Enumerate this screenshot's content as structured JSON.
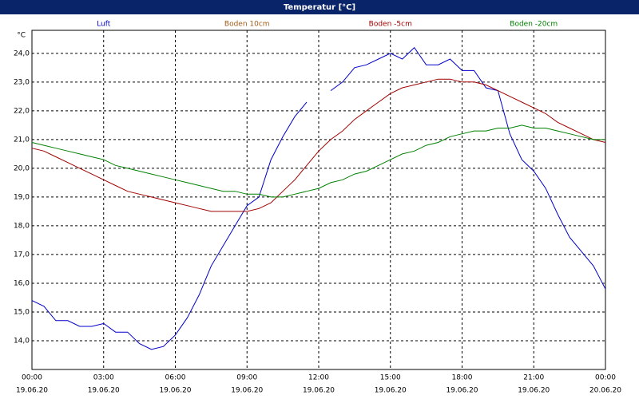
{
  "chart_data": {
    "type": "line",
    "title": "Temperatur [°C]",
    "y_unit": "°C",
    "x": [
      0,
      0.5,
      1,
      1.5,
      2,
      2.5,
      3,
      3.5,
      4,
      4.5,
      5,
      5.5,
      6,
      6.5,
      7,
      7.5,
      8,
      8.5,
      9,
      9.5,
      10,
      10.5,
      11,
      11.5,
      12,
      12.5,
      13,
      13.5,
      14,
      14.5,
      15,
      15.5,
      16,
      16.5,
      17,
      17.5,
      18,
      18.5,
      19,
      19.5,
      20,
      20.5,
      21,
      21.5,
      22,
      22.5,
      23,
      23.5,
      24
    ],
    "series": [
      {
        "name": "Luft",
        "color": "#0000c8",
        "values": [
          15.4,
          15.2,
          14.7,
          14.7,
          14.5,
          14.5,
          14.6,
          14.3,
          14.3,
          13.9,
          13.7,
          13.8,
          14.2,
          14.8,
          15.6,
          16.6,
          17.3,
          18.0,
          18.7,
          19.0,
          20.3,
          21.1,
          21.8,
          22.3,
          null,
          22.7,
          23.0,
          23.5,
          23.6,
          23.8,
          24.0,
          23.8,
          24.2,
          23.6,
          23.6,
          23.8,
          23.4,
          23.4,
          22.8,
          22.7,
          21.2,
          20.3,
          19.9,
          19.3,
          18.4,
          17.6,
          17.1,
          16.6,
          15.8
        ]
      },
      {
        "name": "Boden 10cm",
        "color": "#a05a14",
        "values": [
          null,
          null,
          null,
          null,
          null,
          null,
          null,
          null,
          null,
          null,
          null,
          null,
          null,
          null,
          null,
          null,
          null,
          null,
          null,
          null,
          null,
          null,
          null,
          null,
          null,
          null,
          null,
          null,
          null,
          null,
          null,
          null,
          null,
          null,
          null,
          null,
          null,
          null,
          null,
          null,
          null,
          null,
          null,
          null,
          null,
          null,
          null,
          null,
          null
        ]
      },
      {
        "name": "Boden -5cm",
        "color": "#a00000",
        "values": [
          20.7,
          20.6,
          20.4,
          20.2,
          20.0,
          19.8,
          19.6,
          19.4,
          19.2,
          19.1,
          19.0,
          18.9,
          18.8,
          18.7,
          18.6,
          18.5,
          18.5,
          18.5,
          18.5,
          18.6,
          18.8,
          19.2,
          19.6,
          20.1,
          20.6,
          21.0,
          21.3,
          21.7,
          22.0,
          22.3,
          22.6,
          22.8,
          22.9,
          23.0,
          23.1,
          23.1,
          23.0,
          23.0,
          22.9,
          22.7,
          22.5,
          22.3,
          22.1,
          21.9,
          21.6,
          21.4,
          21.2,
          21.0,
          20.9
        ]
      },
      {
        "name": "Boden -20cm",
        "color": "#008000",
        "values": [
          20.9,
          20.8,
          20.7,
          20.6,
          20.5,
          20.4,
          20.3,
          20.1,
          20.0,
          19.9,
          19.8,
          19.7,
          19.6,
          19.5,
          19.4,
          19.3,
          19.2,
          19.2,
          19.1,
          19.1,
          19.0,
          19.0,
          19.1,
          19.2,
          19.3,
          19.5,
          19.6,
          19.8,
          19.9,
          20.1,
          20.3,
          20.5,
          20.6,
          20.8,
          20.9,
          21.1,
          21.2,
          21.3,
          21.3,
          21.4,
          21.4,
          21.5,
          21.4,
          21.4,
          21.3,
          21.2,
          21.1,
          21.0,
          21.0
        ]
      }
    ],
    "xlim": [
      0,
      24
    ],
    "xticks": [
      {
        "value": 0,
        "label": "00:00"
      },
      {
        "value": 3,
        "label": "03:00"
      },
      {
        "value": 6,
        "label": "06:00"
      },
      {
        "value": 9,
        "label": "09:00"
      },
      {
        "value": 12,
        "label": "12:00"
      },
      {
        "value": 15,
        "label": "15:00"
      },
      {
        "value": 18,
        "label": "18:00"
      },
      {
        "value": 21,
        "label": "21:00"
      },
      {
        "value": 24,
        "label": "00:00"
      }
    ],
    "xtick_dates": [
      "19.06.20",
      "19.06.20",
      "19.06.20",
      "19.06.20",
      "19.06.20",
      "19.06.20",
      "19.06.20",
      "19.06.20",
      "20.06.20"
    ],
    "ylim": [
      13,
      24.8
    ],
    "yticks": [
      {
        "value": 14,
        "label": "14,0"
      },
      {
        "value": 15,
        "label": "15,0"
      },
      {
        "value": 16,
        "label": "16,0"
      },
      {
        "value": 17,
        "label": "17,0"
      },
      {
        "value": 18,
        "label": "18,0"
      },
      {
        "value": 19,
        "label": "19,0"
      },
      {
        "value": 20,
        "label": "20,0"
      },
      {
        "value": 21,
        "label": "21,0"
      },
      {
        "value": 22,
        "label": "22,0"
      },
      {
        "value": 23,
        "label": "23,0"
      },
      {
        "value": 24,
        "label": "24,0"
      }
    ],
    "grid": true
  }
}
